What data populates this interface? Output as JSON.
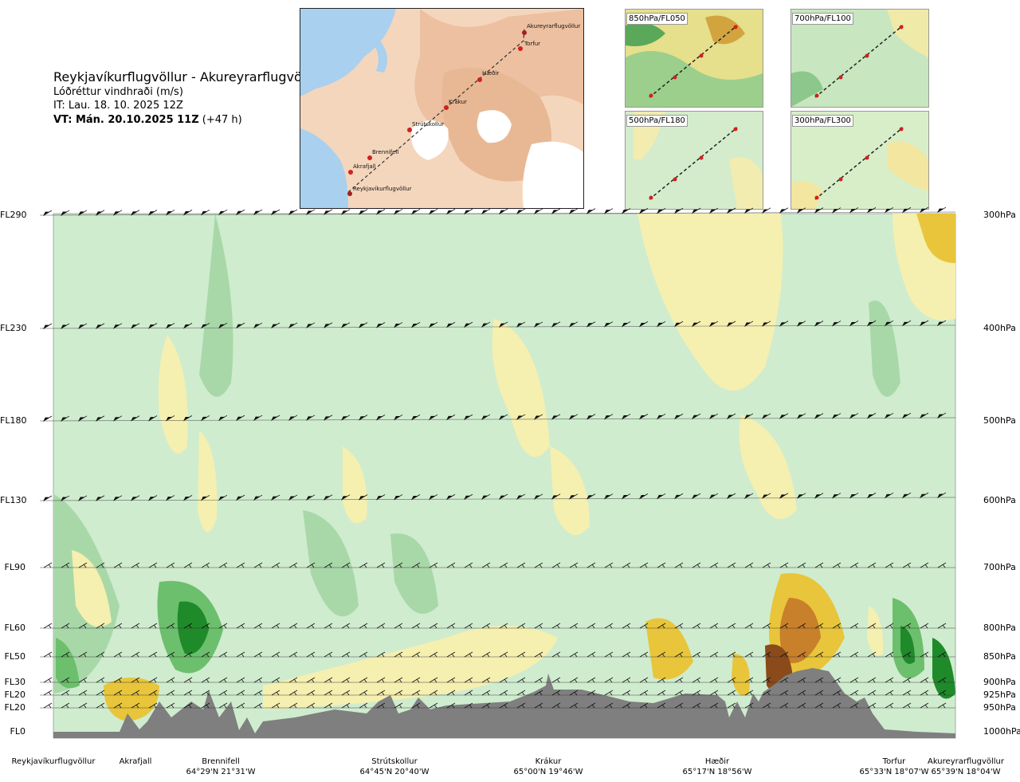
{
  "header": {
    "route": "Reykjavíkurflugvöllur - Akureyrarflugvöllur",
    "variable": "Lóðréttur vindhraði (m/s)",
    "it": "IT: Lau. 18. 10. 2025 12Z",
    "vt_bold": "VT: Mán. 20.10.2025 11Z",
    "vt_offset": " (+47 h)"
  },
  "map": {
    "labels": [
      "Akureyrarflugvöllur",
      "Torfur",
      "Hæðir",
      "Krákur",
      "Strútskollur",
      "Brennifell",
      "Akrafjall",
      "Reykjavíkurflugvöllur"
    ]
  },
  "thumbnails": [
    {
      "label": "850hPa/FL050"
    },
    {
      "label": "700hPa/FL100"
    },
    {
      "label": "500hPa/FL180"
    },
    {
      "label": "300hPa/FL300"
    }
  ],
  "chart_data": {
    "type": "heatmap",
    "title": "Lóðréttur vindhraði (m/s)",
    "y_left_labels": [
      "FL290",
      "FL230",
      "FL180",
      "FL130",
      "FL90",
      "FL60",
      "FL50",
      "FL30",
      "FL20",
      "FL20",
      "FL0"
    ],
    "y_right_labels": [
      "300hPa",
      "400hPa",
      "500hPa",
      "600hPa",
      "700hPa",
      "800hPa",
      "850hPa",
      "900hPa",
      "925hPa",
      "950hPa",
      "1000hPa"
    ],
    "levels_hpa": [
      300,
      400,
      500,
      600,
      700,
      800,
      850,
      900,
      925,
      950,
      1000
    ],
    "locations": [
      {
        "name": "Reykjavíkurflugvöllur",
        "coord": ""
      },
      {
        "name": "Akrafjall",
        "coord": ""
      },
      {
        "name": "Brennifell",
        "coord": "64°29'N 21°31'W"
      },
      {
        "name": "Strútskollur",
        "coord": "64°45'N 20°40'W"
      },
      {
        "name": "Krákur",
        "coord": "65°00'N 19°46'W"
      },
      {
        "name": "Hæðir",
        "coord": "65°17'N 18°56'W"
      },
      {
        "name": "Torfur",
        "coord": "65°33'N 18°07'W"
      },
      {
        "name": "Akureyrarflugvöllur",
        "coord": "65°39'N 18°04'W"
      }
    ],
    "colors": {
      "strong_sink": "#1f8a2a",
      "sink": "#6cbf6c",
      "weak_sink": "#a9d8a8",
      "near_zero": "#cfeccf",
      "weak_rise": "#f5efb0",
      "rise": "#e8c53a",
      "strong_rise": "#c9802a",
      "terrain": "#7f7f7f"
    }
  }
}
